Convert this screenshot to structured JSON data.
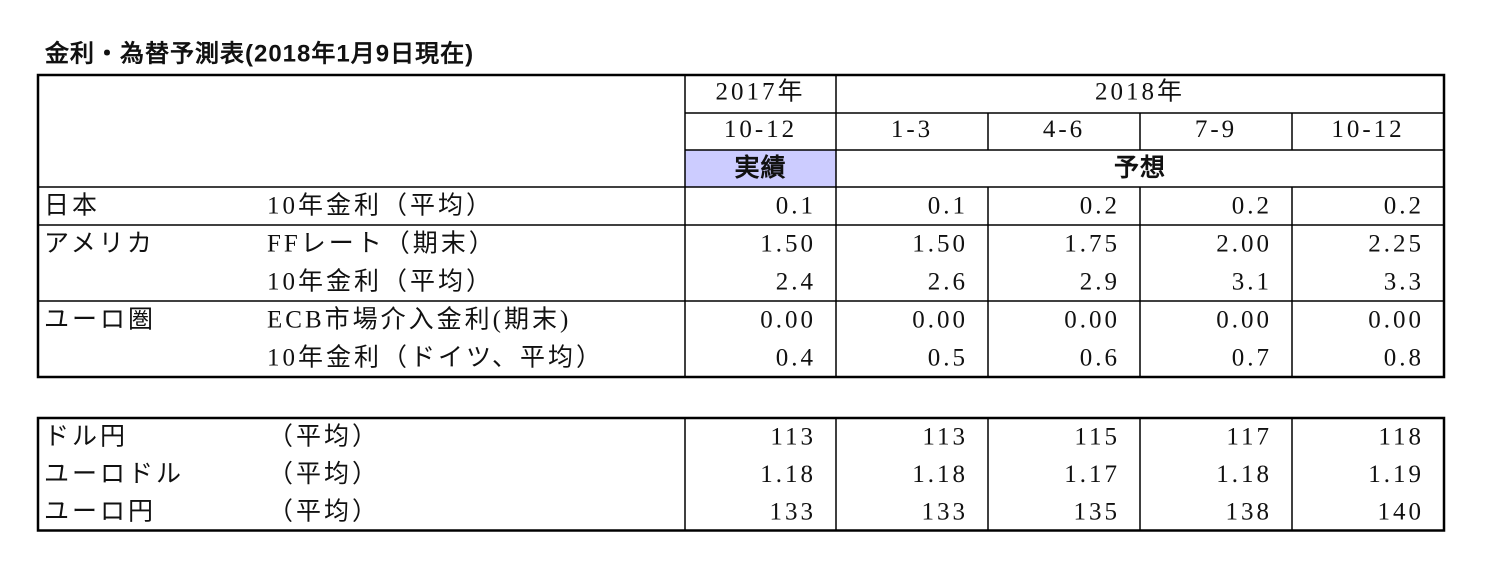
{
  "title": "金利・為替予測表(2018年1月9日現在)",
  "table": {
    "years": [
      "2017年",
      "2018年"
    ],
    "periods": [
      "10-12",
      "1-3",
      "4-6",
      "7-9",
      "10-12"
    ],
    "kinds": [
      "実績",
      "予想"
    ],
    "rows": [
      {
        "region": "日本",
        "indicator": "10年金利（平均）",
        "values": [
          "0.1",
          "0.1",
          "0.2",
          "0.2",
          "0.2"
        ]
      },
      {
        "region": "アメリカ",
        "indicator": "FFレート（期末）",
        "values": [
          "1.50",
          "1.50",
          "1.75",
          "2.00",
          "2.25"
        ]
      },
      {
        "indicator": "10年金利（平均）",
        "values": [
          "2.4",
          "2.6",
          "2.9",
          "3.1",
          "3.3"
        ]
      },
      {
        "region": "ユーロ圏",
        "indicator": "ECB市場介入金利(期末)",
        "values": [
          "0.00",
          "0.00",
          "0.00",
          "0.00",
          "0.00"
        ]
      },
      {
        "indicator": "10年金利（ドイツ、平均）",
        "values": [
          "0.4",
          "0.5",
          "0.6",
          "0.7",
          "0.8"
        ]
      }
    ]
  },
  "fx_table": {
    "rows": [
      {
        "pair": "ドル円",
        "basis": "（平均）",
        "values": [
          "113",
          "113",
          "115",
          "117",
          "118"
        ]
      },
      {
        "pair": "ユーロドル",
        "basis": "（平均）",
        "values": [
          "1.18",
          "1.18",
          "1.17",
          "1.18",
          "1.19"
        ]
      },
      {
        "pair": "ユーロ円",
        "basis": "（平均）",
        "values": [
          "133",
          "133",
          "135",
          "138",
          "140"
        ]
      }
    ]
  }
}
